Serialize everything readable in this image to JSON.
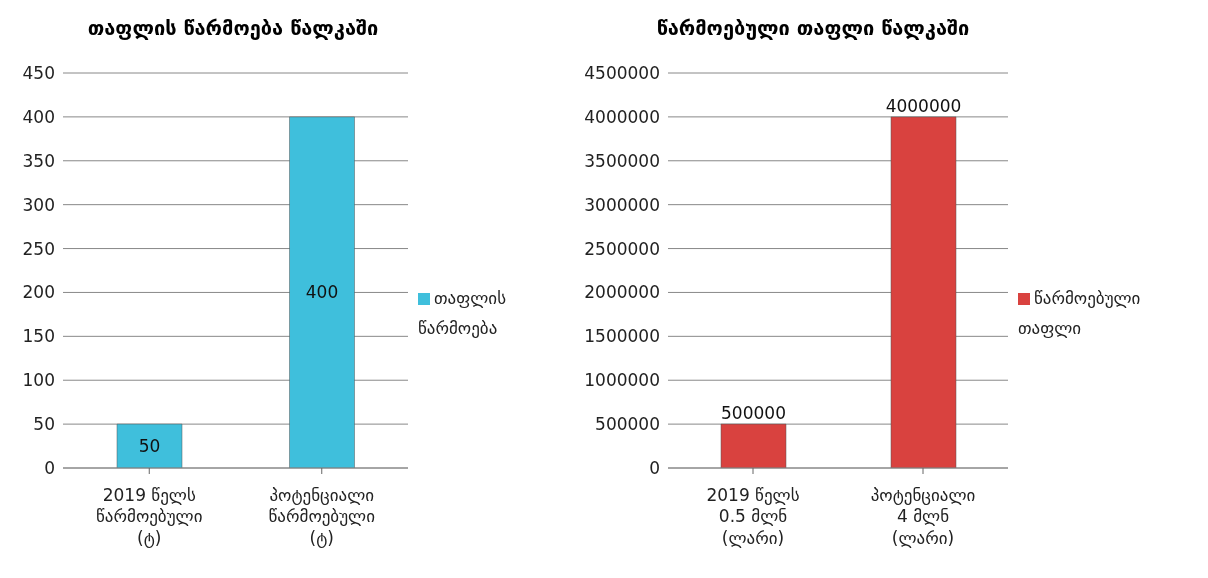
{
  "chart_data": [
    {
      "type": "bar",
      "title": "თაფლის წარმოება წალკაში",
      "categories": [
        "2019 წელს წარმოებული (ტ)",
        "პოტენციალი წარმოებული (ტ)"
      ],
      "series": [
        {
          "name": "თაფლის წარმოება",
          "color": "#3fbfdc",
          "values": [
            50,
            400
          ]
        }
      ],
      "ylim": [
        0,
        450
      ],
      "yticks": [
        0,
        50,
        100,
        150,
        200,
        250,
        300,
        350,
        400,
        450
      ],
      "grid": "y",
      "legend": "right",
      "data_labels": true
    },
    {
      "type": "bar",
      "title": "წარმოებული თაფლი წალკაში",
      "categories": [
        "2019 წელს 0.5 მლნ (ლარი)",
        "პოტენციალი 4 მლნ (ლარი)"
      ],
      "series": [
        {
          "name": "წარმოებული თაფლი",
          "color": "#d9423f",
          "values": [
            500000,
            4000000
          ]
        }
      ],
      "ylim": [
        0,
        4500000
      ],
      "yticks": [
        0,
        500000,
        1000000,
        1500000,
        2000000,
        2500000,
        3000000,
        3500000,
        4000000,
        4500000
      ],
      "grid": "y",
      "legend": "right",
      "data_labels": true
    }
  ]
}
